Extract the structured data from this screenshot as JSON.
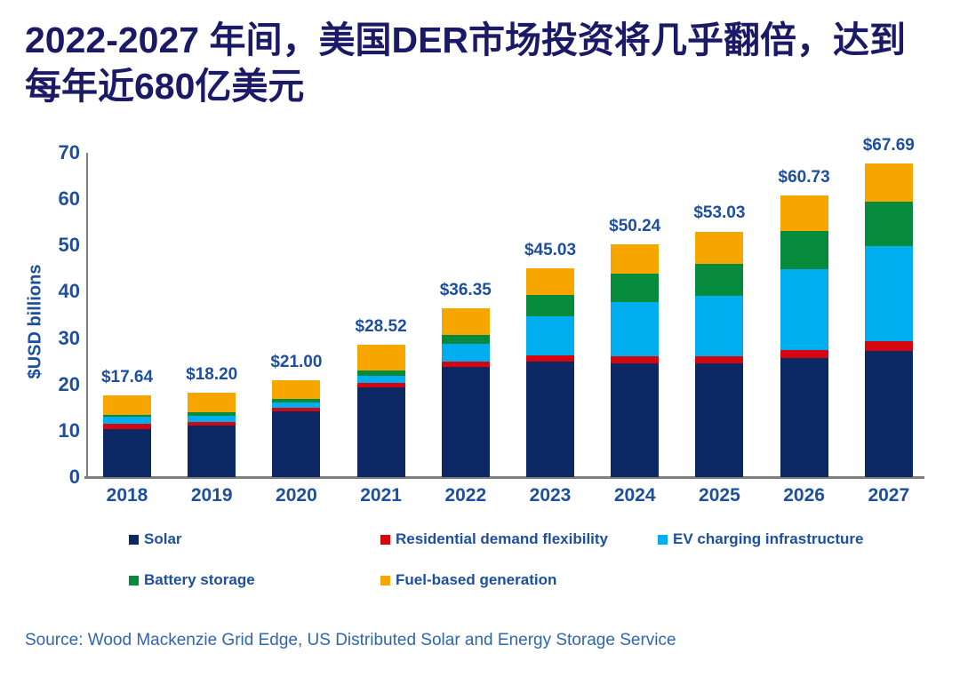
{
  "title": {
    "line1": "2022-2027 年间，美国DER市场投资将几乎翻倍，达到",
    "line2": "每年近680亿美元"
  },
  "chart_data": {
    "type": "bar",
    "stacked": true,
    "title": "2022-2027 年间，美国DER市场投资将几乎翻倍，达到每年近680亿美元",
    "xlabel": "",
    "ylabel": "$USD billions",
    "ylim": [
      0,
      70
    ],
    "yticks": [
      0,
      10,
      20,
      30,
      40,
      50,
      60,
      70
    ],
    "grid": false,
    "legend_position": "bottom",
    "categories": [
      "2018",
      "2019",
      "2020",
      "2021",
      "2022",
      "2023",
      "2024",
      "2025",
      "2026",
      "2027"
    ],
    "series": [
      {
        "key": "solar",
        "name": "Solar",
        "color": "#0C2864",
        "values": [
          10.4,
          11.1,
          14.1,
          19.4,
          23.7,
          24.9,
          24.6,
          24.6,
          25.7,
          27.3
        ]
      },
      {
        "key": "residential-demand-flexibility",
        "name": "Residential demand flexibility",
        "color": "#D5060F",
        "values": [
          1.2,
          0.8,
          0.9,
          1.0,
          1.2,
          1.3,
          1.4,
          1.4,
          1.8,
          2.1
        ]
      },
      {
        "key": "ev-charging-infrastructure",
        "name": "EV charging infrastructure",
        "color": "#00AEEF",
        "values": [
          1.5,
          1.3,
          1.1,
          1.5,
          3.9,
          8.6,
          11.8,
          13.2,
          17.3,
          20.4
        ]
      },
      {
        "key": "battery-storage",
        "name": "Battery storage",
        "color": "#068B3D",
        "values": [
          0.4,
          0.8,
          0.8,
          1.2,
          1.9,
          4.5,
          6.1,
          6.9,
          8.3,
          9.6
        ]
      },
      {
        "key": "fuel-based-generation",
        "name": "Fuel-based generation",
        "color": "#F7A600",
        "values": [
          4.14,
          4.2,
          4.1,
          5.42,
          5.65,
          5.73,
          6.34,
          6.93,
          7.63,
          8.29
        ]
      }
    ],
    "totals": [
      17.64,
      18.2,
      21.0,
      28.52,
      36.35,
      45.03,
      50.24,
      53.03,
      60.73,
      67.69
    ],
    "total_labels": [
      "$17.64",
      "$18.20",
      "$21.00",
      "$28.52",
      "$36.35",
      "$45.03",
      "$50.24",
      "$53.03",
      "$60.73",
      "$67.69"
    ]
  },
  "source": "Source: Wood Mackenzie Grid Edge, US Distributed Solar and Energy Storage Service",
  "colors": {
    "title": "#1B1A67",
    "axis_labels": "#1D4F9E",
    "source_text": "#2F66AF",
    "axis_line": "#7E7E7E",
    "background": "#FFFFFF"
  }
}
